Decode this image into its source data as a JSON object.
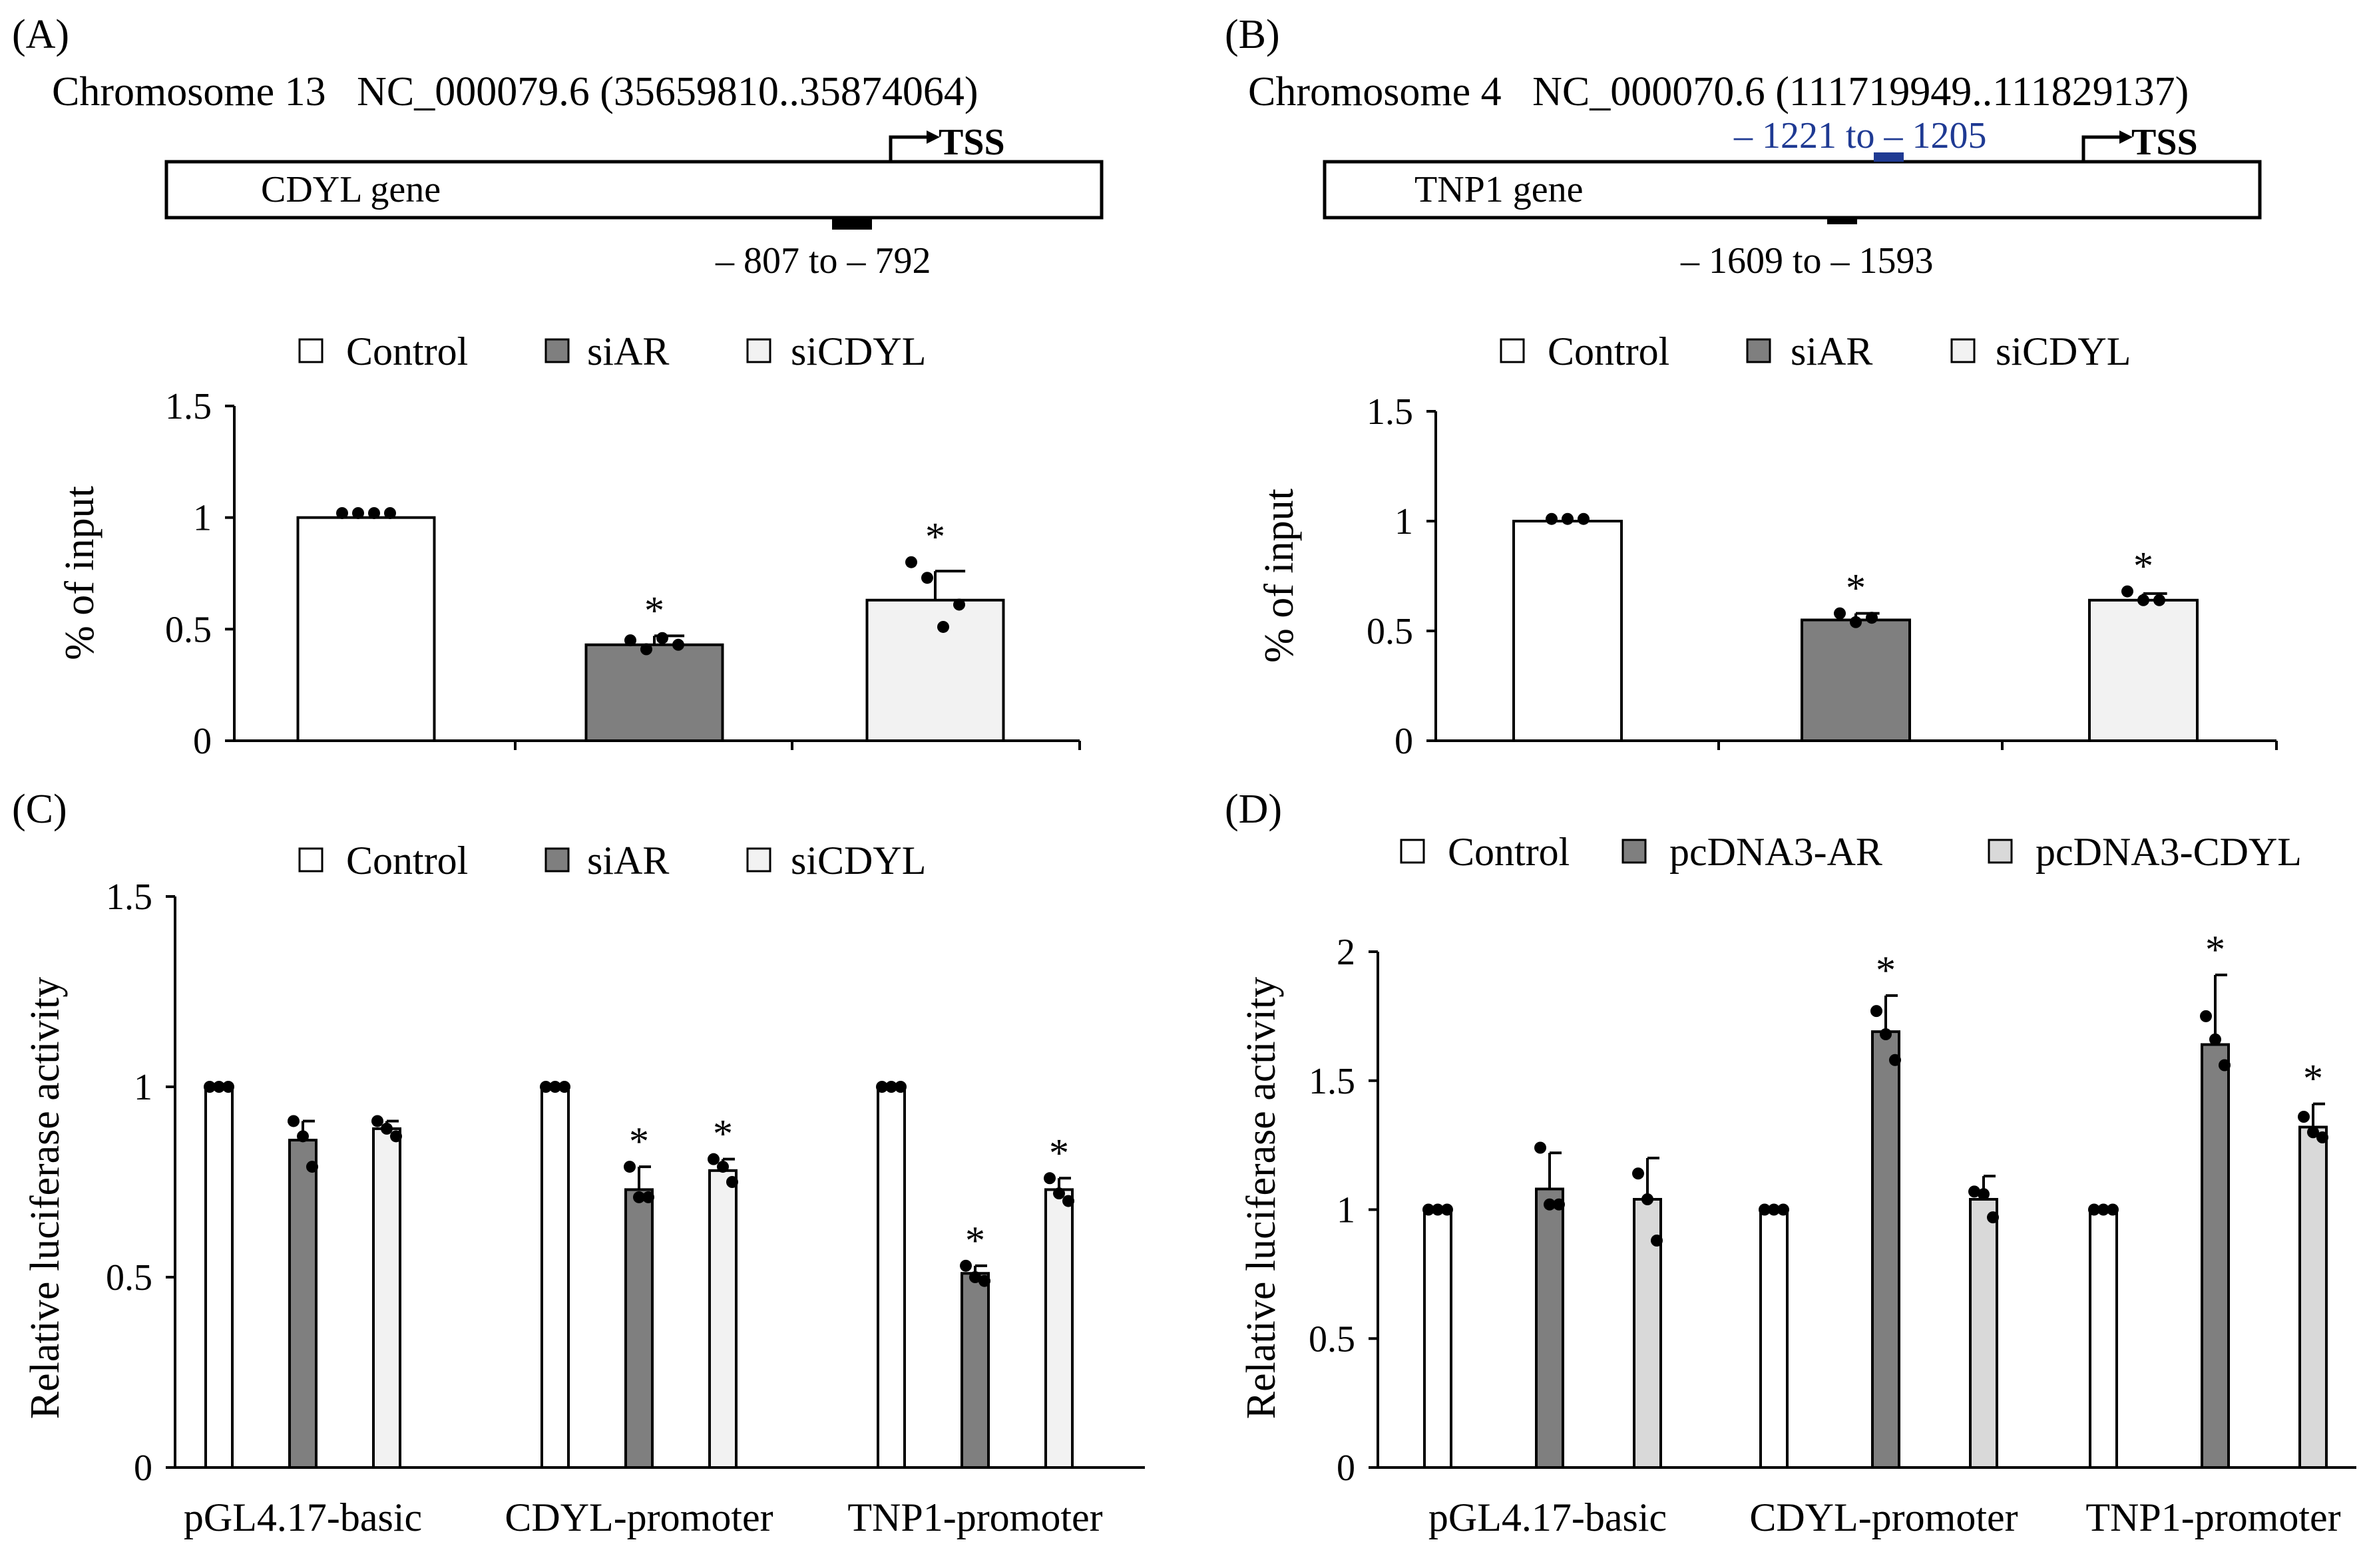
{
  "colors": {
    "control": "#ffffff",
    "siAR": "#7f7f7f",
    "siCDYL": "#f2f2f2",
    "pcAR": "#7f7f7f",
    "pcCDYL": "#d9d9d9",
    "stroke": "#000000",
    "region_blue": "#1f3a93"
  },
  "panelA": {
    "label": "(A)",
    "chrom_text": "Chromosome 13   NC_000079.6 (35659810..35874064)",
    "gene_label": "CDYL gene",
    "tss_label": "TSS",
    "region_below": "– 807 to – 792"
  },
  "panelB": {
    "label": "(B)",
    "chrom_text": "Chromosome 4   NC_000070.6 (111719949..111829137)",
    "gene_label": "TNP1 gene",
    "tss_label": "TSS",
    "region_above": "– 1221 to – 1205",
    "region_below": "– 1609 to – 1593"
  },
  "panelC": {
    "label": "(C)"
  },
  "panelD": {
    "label": "(D)"
  },
  "chart_data": [
    {
      "id": "A",
      "type": "bar",
      "ylabel": "% of input",
      "ylim": [
        0,
        1.5
      ],
      "yticks": [
        "0",
        "0.5",
        "1",
        "1.5"
      ],
      "legend": [
        "Control",
        "siAR",
        "siCDYL"
      ],
      "legend_position": "top",
      "categories": [
        "Control",
        "siAR",
        "siCDYL"
      ],
      "values": [
        1.0,
        0.43,
        0.63
      ],
      "errors": [
        0,
        0.04,
        0.13
      ],
      "points": [
        [
          1.02,
          1.02,
          1.02,
          1.02
        ],
        [
          0.45,
          0.41,
          0.46,
          0.43
        ],
        [
          0.8,
          0.73,
          0.51,
          0.61
        ]
      ],
      "significance": [
        "",
        "*",
        "*"
      ]
    },
    {
      "id": "B",
      "type": "bar",
      "ylabel": "% of input",
      "ylim": [
        0,
        1.5
      ],
      "yticks": [
        "0",
        "0.5",
        "1",
        "1.5"
      ],
      "legend": [
        "Control",
        "siAR",
        "siCDYL"
      ],
      "legend_position": "top",
      "categories": [
        "Control",
        "siAR",
        "siCDYL"
      ],
      "values": [
        1.0,
        0.55,
        0.64
      ],
      "errors": [
        0,
        0.03,
        0.03
      ],
      "points": [
        [
          1.01,
          1.01,
          1.01
        ],
        [
          0.58,
          0.54,
          0.56
        ],
        [
          0.68,
          0.64,
          0.64
        ]
      ],
      "significance": [
        "",
        "*",
        "*"
      ]
    },
    {
      "id": "C",
      "type": "bar",
      "ylabel": "Relative luciferase activity",
      "ylim": [
        0,
        1.5
      ],
      "yticks": [
        "0",
        "0.5",
        "1",
        "1.5"
      ],
      "legend_position": "top",
      "categories": [
        "pGL4.17-basic",
        "CDYL-promoter",
        "TNP1-promoter"
      ],
      "series": [
        {
          "name": "Control",
          "values": [
            1.0,
            1.0,
            1.0
          ],
          "errors": [
            0,
            0,
            0
          ],
          "points": [
            [
              1.0,
              1.0,
              1.0
            ],
            [
              1.0,
              1.0,
              1.0
            ],
            [
              1.0,
              1.0,
              1.0
            ]
          ],
          "significance": [
            "",
            "",
            ""
          ]
        },
        {
          "name": "siAR",
          "values": [
            0.86,
            0.73,
            0.51
          ],
          "errors": [
            0.05,
            0.06,
            0.02
          ],
          "points": [
            [
              0.91,
              0.87,
              0.79
            ],
            [
              0.79,
              0.71,
              0.71
            ],
            [
              0.53,
              0.5,
              0.49
            ]
          ],
          "significance": [
            "",
            "*",
            "*"
          ]
        },
        {
          "name": "siCDYL",
          "values": [
            0.89,
            0.78,
            0.73
          ],
          "errors": [
            0.02,
            0.03,
            0.03
          ],
          "points": [
            [
              0.91,
              0.89,
              0.87
            ],
            [
              0.81,
              0.79,
              0.75
            ],
            [
              0.76,
              0.72,
              0.7
            ]
          ],
          "significance": [
            "",
            "*",
            "*"
          ]
        }
      ]
    },
    {
      "id": "D",
      "type": "bar",
      "ylabel": "Relative luciferase activity",
      "ylim": [
        0,
        2
      ],
      "yticks": [
        "0",
        "0.5",
        "1",
        "1.5",
        "2"
      ],
      "legend_position": "top",
      "categories": [
        "pGL4.17-basic",
        "CDYL-promoter",
        "TNP1-promoter"
      ],
      "series": [
        {
          "name": "Control",
          "values": [
            1.0,
            1.0,
            1.0
          ],
          "errors": [
            0,
            0,
            0
          ],
          "points": [
            [
              1.0,
              1.0,
              1.0
            ],
            [
              1.0,
              1.0,
              1.0
            ],
            [
              1.0,
              1.0,
              1.0
            ]
          ],
          "significance": [
            "",
            "",
            ""
          ]
        },
        {
          "name": "pcDNA3-AR",
          "values": [
            1.08,
            1.69,
            1.64
          ],
          "errors": [
            0.14,
            0.14,
            0.27
          ],
          "points": [
            [
              1.24,
              1.02,
              1.02
            ],
            [
              1.77,
              1.68,
              1.58
            ],
            [
              1.75,
              1.66,
              1.56
            ]
          ],
          "significance": [
            "",
            "*",
            "*"
          ]
        },
        {
          "name": "pcDNA3-CDYL",
          "values": [
            1.04,
            1.04,
            1.32
          ],
          "errors": [
            0.16,
            0.09,
            0.09
          ],
          "points": [
            [
              1.14,
              1.04,
              0.88
            ],
            [
              1.07,
              1.06,
              0.97
            ],
            [
              1.36,
              1.3,
              1.28
            ]
          ],
          "significance": [
            "",
            "",
            "*"
          ]
        }
      ]
    }
  ]
}
